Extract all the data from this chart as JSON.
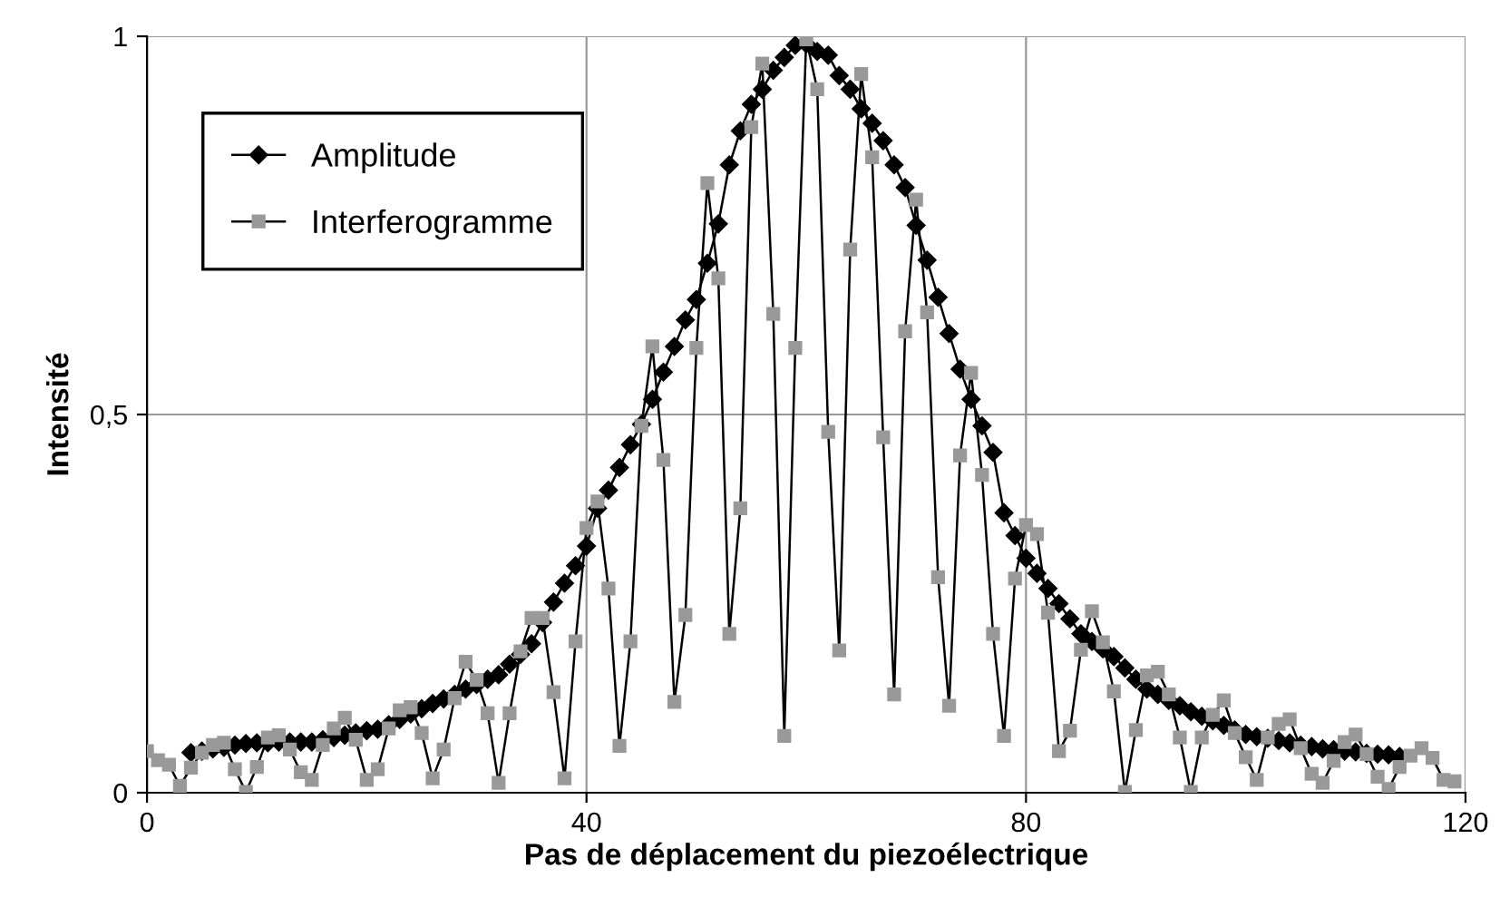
{
  "chart_data": {
    "type": "line",
    "xlabel": "Pas de déplacement du piezoélectrique",
    "ylabel": "Intensité",
    "x": [
      0,
      1,
      2,
      3,
      4,
      5,
      6,
      7,
      8,
      9,
      10,
      11,
      12,
      13,
      14,
      15,
      16,
      17,
      18,
      19,
      20,
      21,
      22,
      23,
      24,
      25,
      26,
      27,
      28,
      29,
      30,
      31,
      32,
      33,
      34,
      35,
      36,
      37,
      38,
      39,
      40,
      41,
      42,
      43,
      44,
      45,
      46,
      47,
      48,
      49,
      50,
      51,
      52,
      53,
      54,
      55,
      56,
      57,
      58,
      59,
      60,
      61,
      62,
      63,
      64,
      65,
      66,
      67,
      68,
      69,
      70,
      71,
      72,
      73,
      74,
      75,
      76,
      77,
      78,
      79,
      80,
      81,
      82,
      83,
      84,
      85,
      86,
      87,
      88,
      89,
      90,
      91,
      92,
      93,
      94,
      95,
      96,
      97,
      98,
      99,
      100,
      101,
      102,
      103,
      104,
      105,
      106,
      107,
      108,
      109,
      110,
      111,
      112,
      113,
      114,
      115,
      116,
      117,
      118,
      119
    ],
    "series": [
      {
        "name": "Amplitude",
        "color": "#000000",
        "marker": "diamond",
        "values": [
          null,
          null,
          null,
          null,
          0.053,
          0.055,
          0.058,
          0.06,
          0.063,
          0.065,
          0.066,
          0.066,
          0.067,
          0.067,
          0.067,
          0.067,
          0.07,
          0.073,
          0.076,
          0.079,
          0.082,
          0.084,
          0.09,
          0.097,
          0.104,
          0.111,
          0.118,
          0.124,
          0.13,
          0.137,
          0.143,
          0.15,
          0.156,
          0.17,
          0.183,
          0.197,
          0.225,
          0.252,
          0.277,
          0.3,
          0.326,
          0.376,
          0.4,
          0.43,
          0.46,
          0.487,
          0.52,
          0.556,
          0.59,
          0.625,
          0.652,
          0.7,
          0.752,
          0.83,
          0.875,
          0.91,
          0.93,
          0.955,
          0.972,
          0.988,
          0.99,
          0.98,
          0.975,
          0.948,
          0.93,
          0.904,
          0.885,
          0.862,
          0.83,
          0.8,
          0.75,
          0.704,
          0.655,
          0.607,
          0.56,
          0.52,
          0.485,
          0.45,
          0.37,
          0.34,
          0.31,
          0.29,
          0.27,
          0.25,
          0.23,
          0.21,
          0.2,
          0.19,
          0.18,
          0.165,
          0.15,
          0.137,
          0.13,
          0.122,
          0.115,
          0.107,
          0.101,
          0.095,
          0.089,
          0.083,
          0.077,
          0.074,
          0.072,
          0.069,
          0.066,
          0.063,
          0.061,
          0.058,
          0.057,
          0.055,
          0.054,
          0.052,
          0.051,
          0.05,
          0.048,
          null,
          null,
          null,
          null,
          null
        ]
      },
      {
        "name": "Interferogramme",
        "color": "#999999",
        "marker": "square",
        "values": [
          0.055,
          0.043,
          0.037,
          0.009,
          0.033,
          0.053,
          0.063,
          0.066,
          0.031,
          0.001,
          0.034,
          0.073,
          0.076,
          0.057,
          0.027,
          0.017,
          0.063,
          0.085,
          0.099,
          0.07,
          0.017,
          0.031,
          0.085,
          0.109,
          0.113,
          0.079,
          0.019,
          0.057,
          0.125,
          0.173,
          0.149,
          0.105,
          0.013,
          0.105,
          0.187,
          0.231,
          0.231,
          0.133,
          0.019,
          0.2,
          0.35,
          0.385,
          0.27,
          0.062,
          0.2,
          0.485,
          0.59,
          0.44,
          0.12,
          0.235,
          0.588,
          0.806,
          0.68,
          0.21,
          0.376,
          0.88,
          0.964,
          0.633,
          0.075,
          0.588,
          0.996,
          0.93,
          0.477,
          0.188,
          0.718,
          0.95,
          0.84,
          0.47,
          0.13,
          0.61,
          0.784,
          0.635,
          0.285,
          0.115,
          0.446,
          0.555,
          0.42,
          0.21,
          0.075,
          0.283,
          0.354,
          0.342,
          0.238,
          0.055,
          0.082,
          0.189,
          0.24,
          0.199,
          0.134,
          0.001,
          0.083,
          0.155,
          0.16,
          0.13,
          0.073,
          0.001,
          0.073,
          0.103,
          0.122,
          0.079,
          0.047,
          0.017,
          0.073,
          0.091,
          0.097,
          0.059,
          0.025,
          0.013,
          0.042,
          0.067,
          0.077,
          0.051,
          0.021,
          0.005,
          0.034,
          0.049,
          0.059,
          0.046,
          0.017,
          0.015
        ]
      }
    ],
    "xlim": [
      0,
      120
    ],
    "xticks": [
      0,
      40,
      80,
      120
    ],
    "ylim": [
      0,
      1
    ],
    "yticks": [
      0,
      {
        "value": 0.5,
        "label": "0,5"
      },
      1
    ],
    "grid": true,
    "legend": "top left",
    "line_style": "solid"
  }
}
